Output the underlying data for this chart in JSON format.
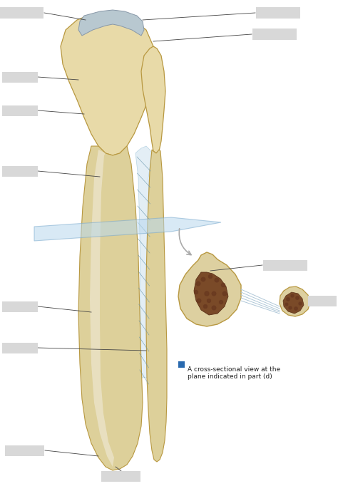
{
  "bg_color": "#ffffff",
  "bone_fill": "#ddd09a",
  "bone_fill2": "#e8daa8",
  "bone_edge": "#b89840",
  "bone_dark": "#a07830",
  "bone_top": "#c8a848",
  "marrow_fill": "#7a4a28",
  "marrow_dark": "#5a3018",
  "marrow_spot": "#6a3a20",
  "membrane_fill": "#cce0ee",
  "membrane_edge": "#88b8d0",
  "cross_fill": "#ddd0a0",
  "cross_edge": "#b89840",
  "label_box_color": "#d8d8d8",
  "label_line_color": "#444444",
  "caption_box_color": "#2a6aaf",
  "caption_text": "A cross-sectional view at the\nplane indicated in part (d)",
  "caption_fontsize": 6.5,
  "fig_width": 4.74,
  "fig_height": 6.96,
  "dpi": 100,
  "arrow_color": "#aaaaaa",
  "interosseous_color": "#b0c8d8"
}
